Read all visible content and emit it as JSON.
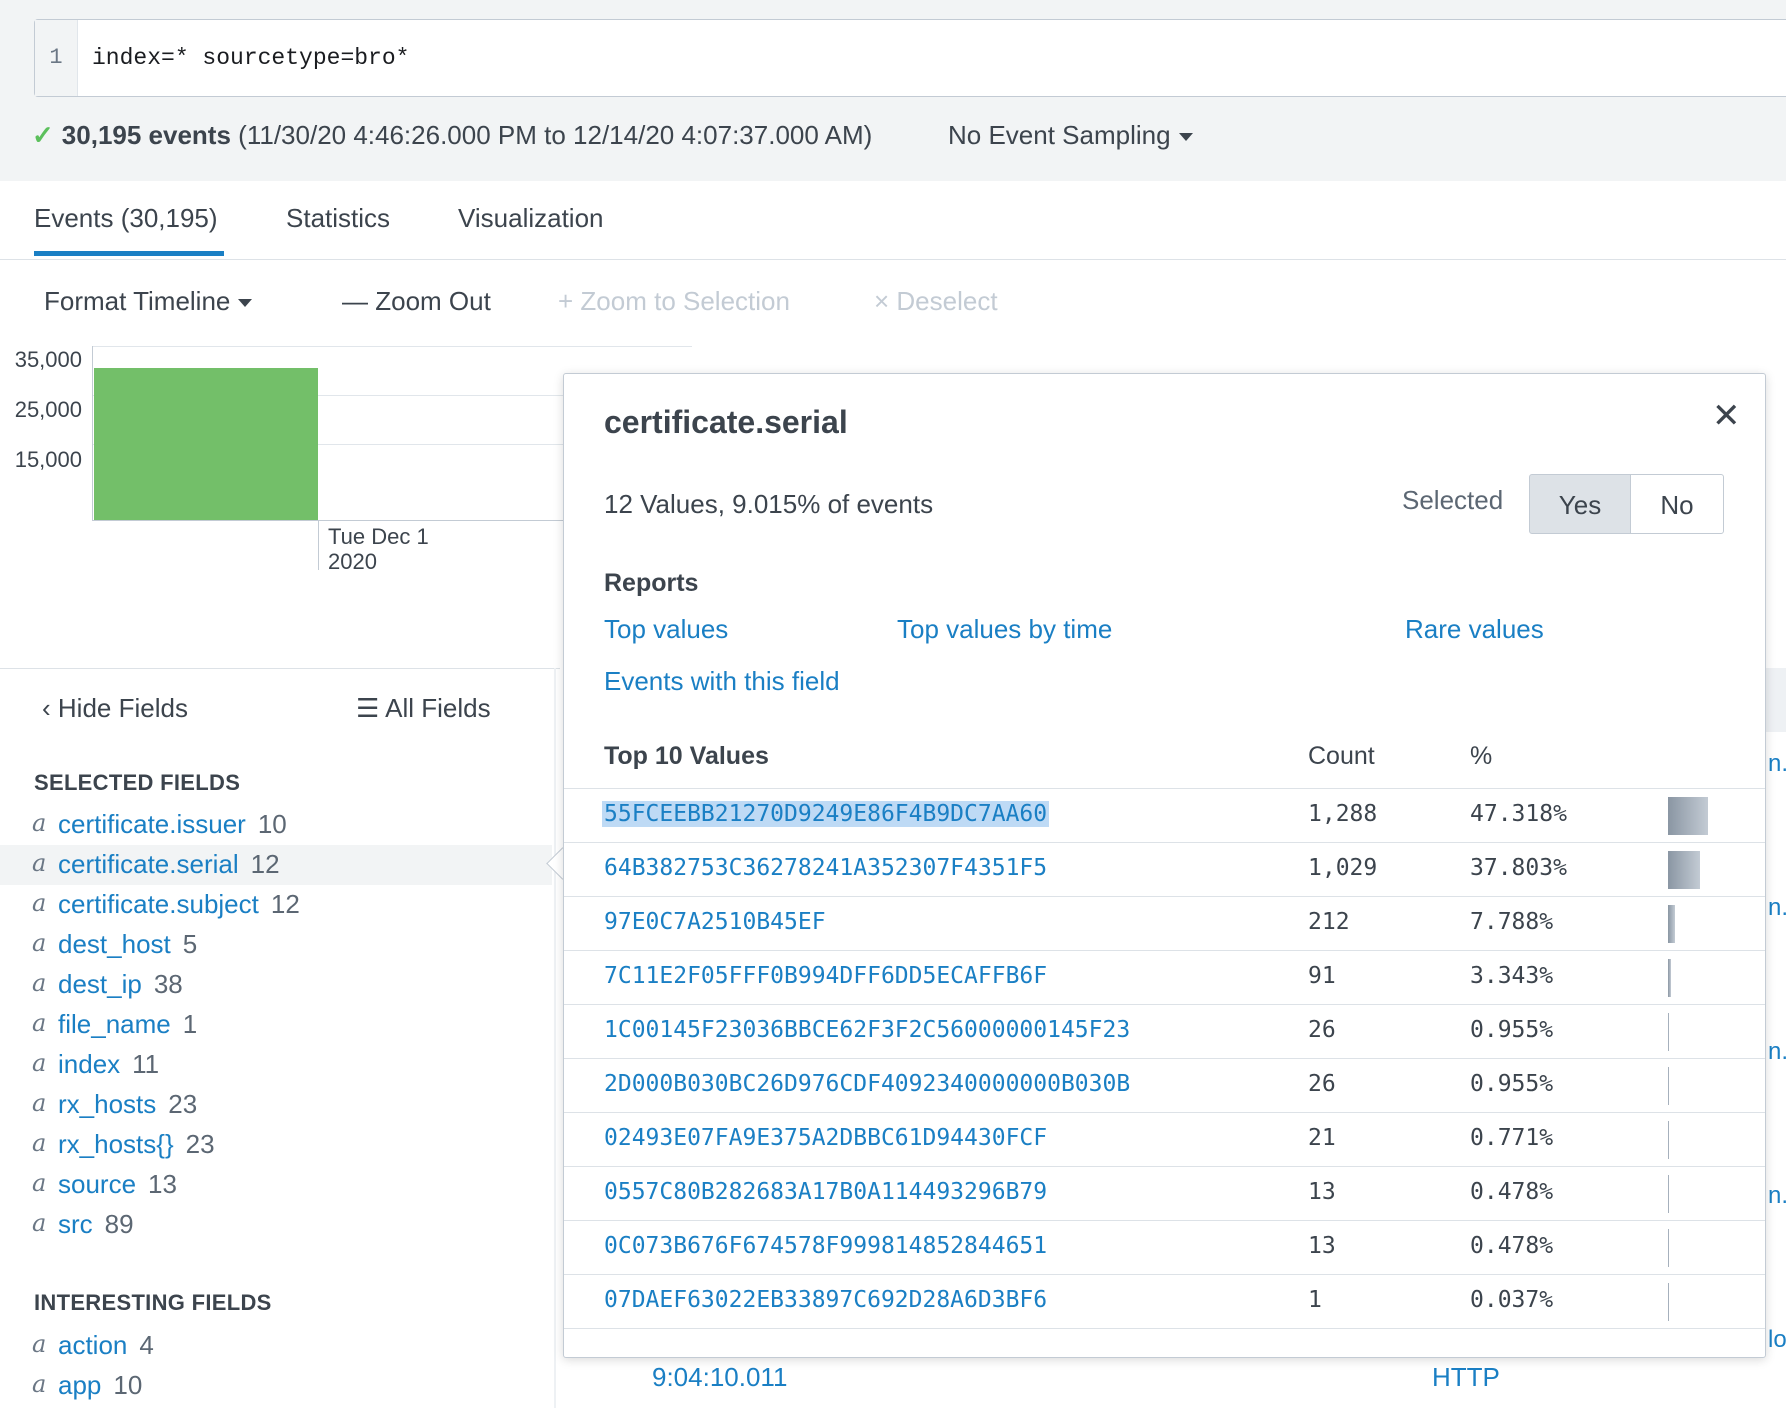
{
  "search": {
    "line_number": "1",
    "query": "index=* sourcetype=bro*"
  },
  "status": {
    "check": "✓",
    "events_count": "30,195 events",
    "time_range": "(11/30/20 4:46:26.000 PM to 12/14/20 4:07:37.000 AM)",
    "sampling": "No Event Sampling"
  },
  "tabs": [
    {
      "label": "Events (30,195)",
      "active": true
    },
    {
      "label": "Statistics",
      "active": false
    },
    {
      "label": "Visualization",
      "active": false
    }
  ],
  "timeline_toolbar": {
    "format": "Format Timeline",
    "zoom_out": "— Zoom Out",
    "zoom_selection": "+ Zoom to Selection",
    "deselect": "× Deselect"
  },
  "chart_data": {
    "type": "bar",
    "yticks": [
      "35,000",
      "25,000",
      "15,000"
    ],
    "x_label_line1": "Tue Dec 1",
    "x_label_line2": "2020"
  },
  "sidebar": {
    "hide_fields": "Hide Fields",
    "all_fields": "All Fields",
    "selected_title": "SELECTED FIELDS",
    "interesting_title": "INTERESTING FIELDS",
    "type_glyph": "a",
    "selected_fields": [
      {
        "name": "certificate.issuer",
        "count": "10"
      },
      {
        "name": "certificate.serial",
        "count": "12"
      },
      {
        "name": "certificate.subject",
        "count": "12"
      },
      {
        "name": "dest_host",
        "count": "5"
      },
      {
        "name": "dest_ip",
        "count": "38"
      },
      {
        "name": "file_name",
        "count": "1"
      },
      {
        "name": "index",
        "count": "11"
      },
      {
        "name": "rx_hosts",
        "count": "23"
      },
      {
        "name": "rx_hosts{}",
        "count": "23"
      },
      {
        "name": "source",
        "count": "13"
      },
      {
        "name": "src",
        "count": "89"
      }
    ],
    "interesting_fields": [
      {
        "name": "action",
        "count": "4"
      },
      {
        "name": "app",
        "count": "10"
      }
    ]
  },
  "background": {
    "frag": "n.l",
    "frag2": "lo",
    "time": "9:04:10.011",
    "http": "HTTP"
  },
  "popup": {
    "title": "certificate.serial",
    "close": "✕",
    "summary": "12 Values, 9.015% of events",
    "selected_label": "Selected",
    "yes": "Yes",
    "no": "No",
    "reports_title": "Reports",
    "links": {
      "top_values": "Top values",
      "top_values_by_time": "Top values by time",
      "rare_values": "Rare values",
      "events_with_field": "Events with this field"
    },
    "table": {
      "col_value": "Top 10 Values",
      "col_count": "Count",
      "col_pct": "%",
      "rows": [
        {
          "value": "55FCEEBB21270D9249E86F4B9DC7AA60",
          "count": "1,288",
          "pct": "47.318%",
          "frac": 0.47318
        },
        {
          "value": "64B382753C36278241A352307F4351F5",
          "count": "1,029",
          "pct": "37.803%",
          "frac": 0.37803
        },
        {
          "value": "97E0C7A2510B45EF",
          "count": "212",
          "pct": "7.788%",
          "frac": 0.07788
        },
        {
          "value": "7C11E2F05FFF0B994DFF6DD5ECAFFB6F",
          "count": "91",
          "pct": "3.343%",
          "frac": 0.03343
        },
        {
          "value": "1C00145F23036BBCE62F3F2C56000000145F23",
          "count": "26",
          "pct": "0.955%",
          "frac": 0.00955
        },
        {
          "value": "2D000B030BC26D976CDF4092340000000B030B",
          "count": "26",
          "pct": "0.955%",
          "frac": 0.00955
        },
        {
          "value": "02493E07FA9E375A2DBBC61D94430FCF",
          "count": "21",
          "pct": "0.771%",
          "frac": 0.00771
        },
        {
          "value": "0557C80B282683A17B0A114493296B79",
          "count": "13",
          "pct": "0.478%",
          "frac": 0.00478
        },
        {
          "value": "0C073B676F674578F999814852844651",
          "count": "13",
          "pct": "0.478%",
          "frac": 0.00478
        },
        {
          "value": "07DAEF63022EB33897C692D28A6D3BF6",
          "count": "1",
          "pct": "0.037%",
          "frac": 0.00037
        }
      ]
    }
  }
}
